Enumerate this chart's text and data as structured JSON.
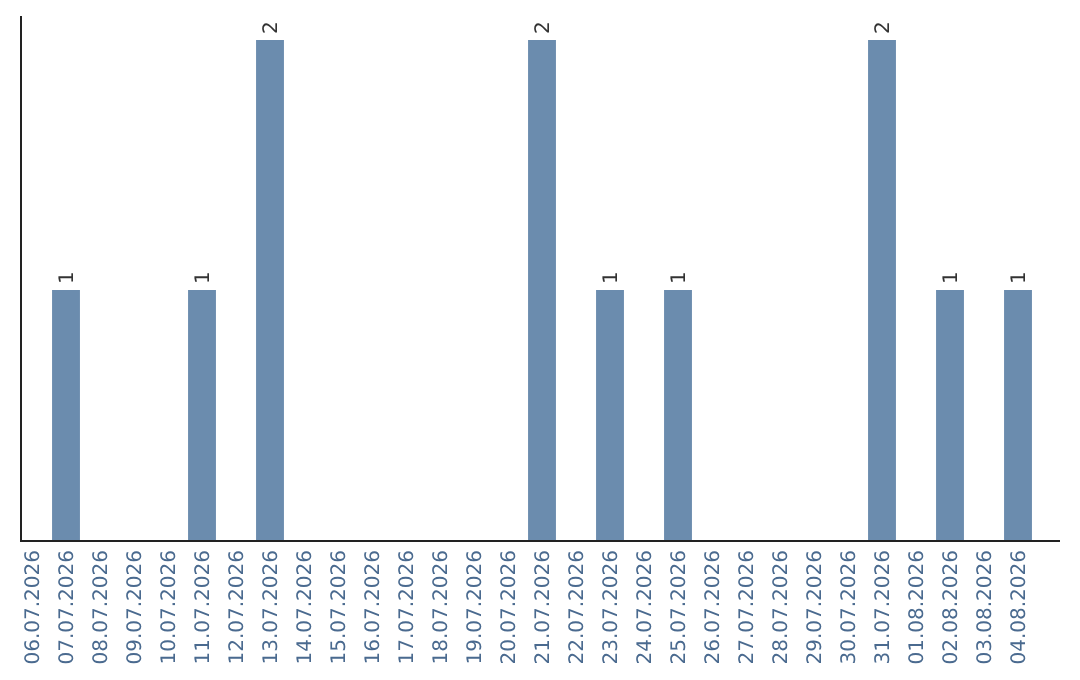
{
  "chart_data": {
    "type": "bar",
    "categories": [
      "06.07.2026",
      "07.07.2026",
      "08.07.2026",
      "09.07.2026",
      "10.07.2026",
      "11.07.2026",
      "12.07.2026",
      "13.07.2026",
      "14.07.2026",
      "15.07.2026",
      "16.07.2026",
      "17.07.2026",
      "18.07.2026",
      "19.07.2026",
      "20.07.2026",
      "21.07.2026",
      "22.07.2026",
      "23.07.2026",
      "24.07.2026",
      "25.07.2026",
      "26.07.2026",
      "27.07.2026",
      "28.07.2026",
      "29.07.2026",
      "30.07.2026",
      "31.07.2026",
      "01.08.2026",
      "02.08.2026",
      "03.08.2026",
      "04.08.2026"
    ],
    "values": [
      0,
      1,
      0,
      0,
      0,
      1,
      0,
      2,
      0,
      0,
      0,
      0,
      0,
      0,
      0,
      2,
      0,
      1,
      0,
      1,
      0,
      0,
      0,
      0,
      0,
      2,
      0,
      1,
      0,
      1
    ],
    "value_labels": [
      null,
      "1",
      null,
      null,
      null,
      "1",
      null,
      "2",
      null,
      null,
      null,
      null,
      null,
      null,
      null,
      "2",
      null,
      "1",
      null,
      "1",
      null,
      null,
      null,
      null,
      null,
      "2",
      null,
      "1",
      null,
      "1"
    ],
    "color": "#6b8cae"
  }
}
